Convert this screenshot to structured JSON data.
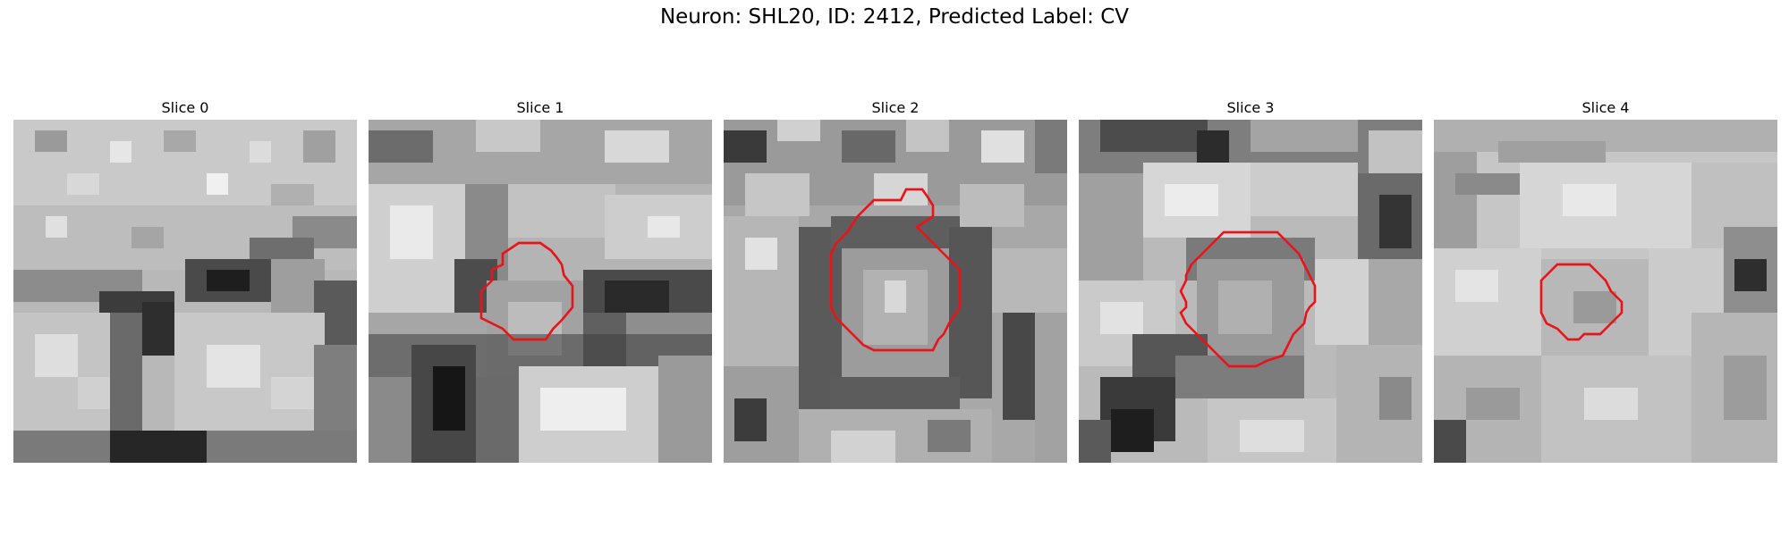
{
  "figure": {
    "title": "Neuron: SHL20, ID: 2412, Predicted Label: CV"
  },
  "panels": [
    {
      "title": "Slice 0",
      "has_contour": false
    },
    {
      "title": "Slice 1",
      "has_contour": true
    },
    {
      "title": "Slice 2",
      "has_contour": true
    },
    {
      "title": "Slice 3",
      "has_contour": true
    },
    {
      "title": "Slice 4",
      "has_contour": true
    }
  ],
  "colors": {
    "contour": "#e8141a",
    "colormap": "grayscale"
  }
}
